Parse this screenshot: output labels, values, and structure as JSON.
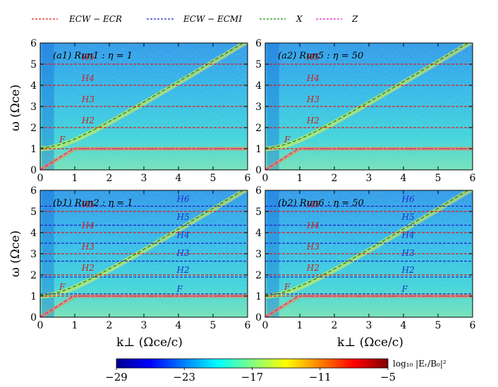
{
  "legend": [
    {
      "label": "ECW − ECR",
      "color": "#e41a1c"
    },
    {
      "label": "ECW − ECMI",
      "color": "#2222cc"
    },
    {
      "label": "X",
      "color": "#1a8c1a"
    },
    {
      "label": "Z",
      "color": "#e020c0"
    }
  ],
  "colorbar": {
    "label": "log₁₀ |Eᵣ/B₀|²",
    "ticks": [
      "−29",
      "−23",
      "−17",
      "−11",
      "−5"
    ],
    "range": [
      -29,
      -5
    ],
    "colors": [
      "#00008f",
      "#0000ff",
      "#0080ff",
      "#00ffff",
      "#80ff80",
      "#ffff00",
      "#ff8000",
      "#ff0000",
      "#800000"
    ]
  },
  "axes": {
    "xlabel": "k⊥ (Ωce/c)",
    "ylabel": "ω (Ωce)",
    "xticks": [
      "0",
      "1",
      "2",
      "3",
      "4",
      "5",
      "6"
    ],
    "yticks": [
      "0",
      "1",
      "2",
      "3",
      "4",
      "5",
      "6"
    ]
  },
  "chart_data": [
    {
      "type": "heatmap",
      "title": "(a1) Run1 : η = 1",
      "xlim": [
        0,
        6
      ],
      "ylim": [
        0,
        6
      ],
      "red_lines": [
        1,
        2,
        3,
        4,
        5
      ],
      "blue_lines": [],
      "red_labels": [
        {
          "text": "F",
          "x": 0.55,
          "y": 1.3
        },
        {
          "text": "H2",
          "x": 1.2,
          "y": 2.2
        },
        {
          "text": "H3",
          "x": 1.2,
          "y": 3.2
        },
        {
          "text": "H4",
          "x": 1.2,
          "y": 4.2
        },
        {
          "text": "H5",
          "x": 1.2,
          "y": 5.2
        }
      ],
      "blue_labels": [],
      "curves": [
        "X",
        "Z"
      ]
    },
    {
      "type": "heatmap",
      "title": "(a2) Run5 : η = 50",
      "xlim": [
        0,
        6
      ],
      "ylim": [
        0,
        6
      ],
      "red_lines": [
        1,
        2,
        3,
        4,
        5
      ],
      "blue_lines": [],
      "red_labels": [
        {
          "text": "F",
          "x": 0.55,
          "y": 1.3
        },
        {
          "text": "H2",
          "x": 1.2,
          "y": 2.2
        },
        {
          "text": "H3",
          "x": 1.2,
          "y": 3.2
        },
        {
          "text": "H4",
          "x": 1.2,
          "y": 4.2
        },
        {
          "text": "H5",
          "x": 1.2,
          "y": 5.2
        }
      ],
      "blue_labels": [],
      "curves": [
        "X",
        "Z"
      ]
    },
    {
      "type": "heatmap",
      "title": "(b1) Run2 : η = 1",
      "xlim": [
        0,
        6
      ],
      "ylim": [
        0,
        6
      ],
      "red_lines": [
        1,
        2,
        3,
        4,
        5
      ],
      "blue_lines": [
        1.1,
        1.9,
        2.65,
        3.5,
        4.35,
        5.25
      ],
      "red_labels": [
        {
          "text": "F",
          "x": 0.55,
          "y": 1.3
        },
        {
          "text": "H2",
          "x": 1.2,
          "y": 2.2
        },
        {
          "text": "H3",
          "x": 1.2,
          "y": 3.2
        },
        {
          "text": "H4",
          "x": 1.2,
          "y": 4.2
        },
        {
          "text": "H5",
          "x": 1.2,
          "y": 5.2
        }
      ],
      "blue_labels": [
        {
          "text": "F",
          "x": 3.95,
          "y": 1.2
        },
        {
          "text": "H2",
          "x": 3.95,
          "y": 2.1
        },
        {
          "text": "H3",
          "x": 3.95,
          "y": 2.9
        },
        {
          "text": "H4",
          "x": 3.95,
          "y": 3.75
        },
        {
          "text": "H5",
          "x": 3.95,
          "y": 4.6
        },
        {
          "text": "H6",
          "x": 3.95,
          "y": 5.45
        }
      ],
      "curves": [
        "X",
        "Z"
      ]
    },
    {
      "type": "heatmap",
      "title": "(b2) Run6 : η = 50",
      "xlim": [
        0,
        6
      ],
      "ylim": [
        0,
        6
      ],
      "red_lines": [
        1,
        2,
        3,
        4,
        5
      ],
      "blue_lines": [
        1.1,
        1.9,
        2.65,
        3.5,
        4.35,
        5.25
      ],
      "red_labels": [
        {
          "text": "F",
          "x": 0.55,
          "y": 1.3
        },
        {
          "text": "H2",
          "x": 1.2,
          "y": 2.2
        },
        {
          "text": "H3",
          "x": 1.2,
          "y": 3.2
        },
        {
          "text": "H4",
          "x": 1.2,
          "y": 4.2
        },
        {
          "text": "H5",
          "x": 1.2,
          "y": 5.2
        }
      ],
      "blue_labels": [
        {
          "text": "F",
          "x": 3.95,
          "y": 1.2
        },
        {
          "text": "H2",
          "x": 3.95,
          "y": 2.1
        },
        {
          "text": "H3",
          "x": 3.95,
          "y": 2.9
        },
        {
          "text": "H4",
          "x": 3.95,
          "y": 3.75
        },
        {
          "text": "H5",
          "x": 3.95,
          "y": 4.6
        },
        {
          "text": "H6",
          "x": 3.95,
          "y": 5.45
        }
      ],
      "curves": [
        "X",
        "Z"
      ]
    }
  ]
}
